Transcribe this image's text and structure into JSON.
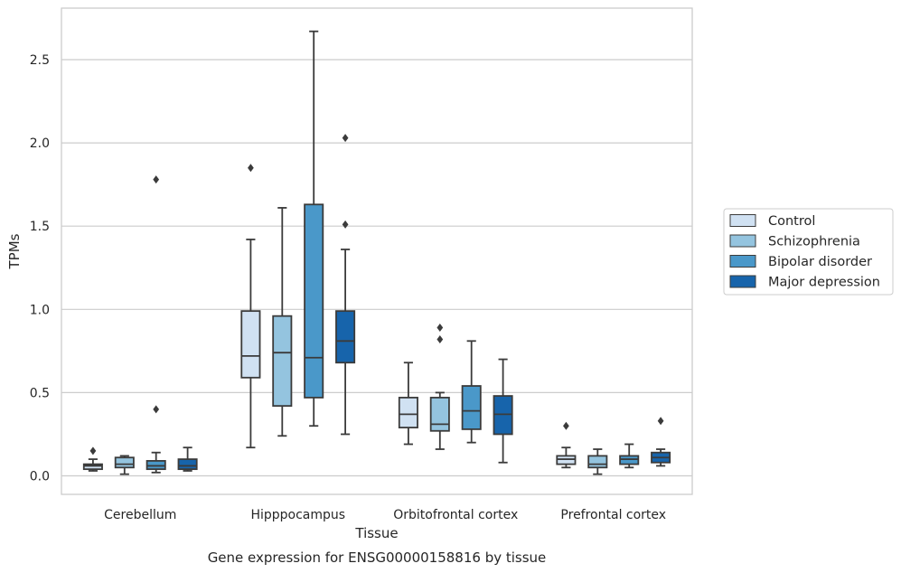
{
  "chart_data": {
    "type": "boxplot",
    "title": "",
    "caption": "Gene expression for ENSG00000158816 by tissue",
    "xlabel": "Tissue",
    "ylabel": "TPMs",
    "ylim": [
      -0.12,
      2.78
    ],
    "yticks": [
      0.0,
      0.5,
      1.0,
      1.5,
      2.0,
      2.5
    ],
    "ytick_labels": [
      "0.0",
      "0.5",
      "1.0",
      "1.5",
      "2.0",
      "2.5"
    ],
    "grid": "horizontal",
    "legend_position": "right",
    "categories": [
      "Cerebellum",
      "Hipppocampus",
      "Orbitofrontal cortex",
      "Prefrontal cortex"
    ],
    "series": [
      {
        "name": "Control",
        "color": "#d0e1f2",
        "boxes": [
          {
            "whislo": 0.03,
            "q1": 0.04,
            "med": 0.06,
            "q3": 0.07,
            "whishi": 0.1,
            "fliers": [
              0.15
            ]
          },
          {
            "whislo": 0.17,
            "q1": 0.59,
            "med": 0.72,
            "q3": 0.99,
            "whishi": 1.42,
            "fliers": [
              1.85
            ]
          },
          {
            "whislo": 0.19,
            "q1": 0.29,
            "med": 0.37,
            "q3": 0.47,
            "whishi": 0.68,
            "fliers": []
          },
          {
            "whislo": 0.05,
            "q1": 0.07,
            "med": 0.1,
            "q3": 0.12,
            "whishi": 0.17,
            "fliers": [
              0.3
            ]
          }
        ]
      },
      {
        "name": "Schizophrenia",
        "color": "#94c4df",
        "boxes": [
          {
            "whislo": 0.01,
            "q1": 0.05,
            "med": 0.07,
            "q3": 0.11,
            "whishi": 0.12,
            "fliers": []
          },
          {
            "whislo": 0.24,
            "q1": 0.42,
            "med": 0.74,
            "q3": 0.96,
            "whishi": 1.61,
            "fliers": []
          },
          {
            "whislo": 0.16,
            "q1": 0.27,
            "med": 0.31,
            "q3": 0.47,
            "whishi": 0.5,
            "fliers": [
              0.82,
              0.89
            ]
          },
          {
            "whislo": 0.01,
            "q1": 0.05,
            "med": 0.07,
            "q3": 0.12,
            "whishi": 0.16,
            "fliers": []
          }
        ]
      },
      {
        "name": "Bipolar disorder",
        "color": "#4a98c9",
        "boxes": [
          {
            "whislo": 0.02,
            "q1": 0.04,
            "med": 0.06,
            "q3": 0.09,
            "whishi": 0.14,
            "fliers": [
              0.4,
              1.78
            ]
          },
          {
            "whislo": 0.3,
            "q1": 0.47,
            "med": 0.71,
            "q3": 1.63,
            "whishi": 2.67,
            "fliers": []
          },
          {
            "whislo": 0.2,
            "q1": 0.28,
            "med": 0.39,
            "q3": 0.54,
            "whishi": 0.81,
            "fliers": []
          },
          {
            "whislo": 0.05,
            "q1": 0.07,
            "med": 0.1,
            "q3": 0.12,
            "whishi": 0.19,
            "fliers": []
          }
        ]
      },
      {
        "name": "Major depression",
        "color": "#1764ab",
        "boxes": [
          {
            "whislo": 0.03,
            "q1": 0.04,
            "med": 0.06,
            "q3": 0.1,
            "whishi": 0.17,
            "fliers": []
          },
          {
            "whislo": 0.25,
            "q1": 0.68,
            "med": 0.81,
            "q3": 0.99,
            "whishi": 1.36,
            "fliers": [
              1.51,
              2.03
            ]
          },
          {
            "whislo": 0.08,
            "q1": 0.25,
            "med": 0.37,
            "q3": 0.48,
            "whishi": 0.7,
            "fliers": []
          },
          {
            "whislo": 0.06,
            "q1": 0.08,
            "med": 0.11,
            "q3": 0.14,
            "whishi": 0.16,
            "fliers": [
              0.33
            ]
          }
        ]
      }
    ]
  }
}
